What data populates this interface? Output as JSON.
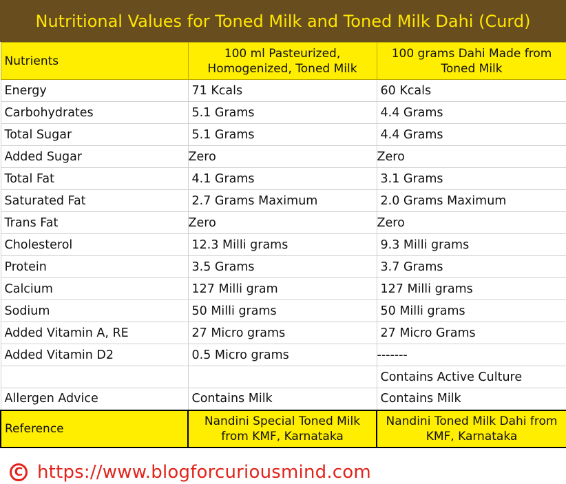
{
  "title": "Nutritional Values for Toned Milk and Toned Milk Dahi (Curd)",
  "headers": {
    "nutrients": "Nutrients",
    "milk": "100 ml Pasteurized, Homogenized, Toned Milk",
    "dahi": "100 grams Dahi Made from Toned Milk"
  },
  "rows": [
    {
      "nutrient": "Energy",
      "milk": "71 Kcals",
      "dahi": "60 Kcals"
    },
    {
      "nutrient": "Carbohydrates",
      "milk": "5.1 Grams",
      "dahi": "4.4 Grams"
    },
    {
      "nutrient": "Total Sugar",
      "milk": "5.1 Grams",
      "dahi": "4.4 Grams"
    },
    {
      "nutrient": "Added Sugar",
      "milk": "Zero",
      "dahi": "Zero"
    },
    {
      "nutrient": "Total Fat",
      "milk": "4.1 Grams",
      "dahi": "3.1 Grams"
    },
    {
      "nutrient": "Saturated Fat",
      "milk": "2.7 Grams Maximum",
      "dahi": "2.0 Grams Maximum"
    },
    {
      "nutrient": "Trans Fat",
      "milk": "Zero",
      "dahi": "Zero"
    },
    {
      "nutrient": "Cholesterol",
      "milk": "12.3 Milli grams",
      "dahi": "9.3 Milli grams"
    },
    {
      "nutrient": "Protein",
      "milk": "3.5 Grams",
      "dahi": "3.7 Grams"
    },
    {
      "nutrient": "Calcium",
      "milk": "127 Milli gram",
      "dahi": "127 Milli grams"
    },
    {
      "nutrient": "Sodium",
      "milk": "50 Milli grams",
      "dahi": "50 Milli grams"
    },
    {
      "nutrient": "Added Vitamin A, RE",
      "milk": "27 Micro grams",
      "dahi": "27 Micro Grams"
    },
    {
      "nutrient": "Added Vitamin D2",
      "milk": "0.5 Micro grams",
      "dahi": "-------"
    },
    {
      "nutrient": "",
      "milk": "",
      "dahi": "Contains Active Culture"
    },
    {
      "nutrient": "Allergen Advice",
      "milk": "Contains Milk",
      "dahi": "Contains Milk"
    }
  ],
  "reference": {
    "label": "Reference",
    "milk": "Nandini Special Toned Milk from KMF, Karnataka",
    "dahi": "Nandini Toned Milk Dahi from KMF, Karnataka"
  },
  "footer": {
    "copyright_symbol": "C",
    "url": "https://www.blogforcuriousmind.com"
  }
}
